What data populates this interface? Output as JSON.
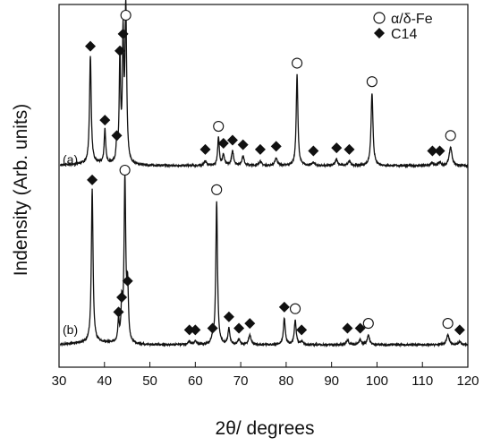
{
  "chart_data": {
    "type": "line",
    "xlabel": "2θ/ degrees",
    "ylabel": "Indensity (Arb. units)",
    "xlim": [
      30,
      120
    ],
    "x_ticks": [
      30,
      40,
      50,
      60,
      70,
      80,
      90,
      100,
      110,
      120
    ],
    "y_ticks_shown": false,
    "grid": false,
    "legend_position": "top-right",
    "legend": [
      {
        "marker": "open-circle",
        "label": "α/δ-Fe"
      },
      {
        "marker": "filled-diamond",
        "label": "C14"
      }
    ],
    "colors": {
      "line": "#111111",
      "axis": "#111111"
    },
    "series": [
      {
        "name": "(a)",
        "baseline": 0.0,
        "noise": 0.012,
        "peaks": [
          {
            "x": 36.9,
            "h": 0.7,
            "w": 0.22
          },
          {
            "x": 40.1,
            "h": 0.22,
            "w": 0.2
          },
          {
            "x": 42.7,
            "h": 0.12,
            "w": 0.18
          },
          {
            "x": 43.4,
            "h": 0.67,
            "w": 0.18
          },
          {
            "x": 44.1,
            "h": 0.78,
            "w": 0.18
          },
          {
            "x": 44.7,
            "h": 1.0,
            "w": 0.22
          },
          {
            "x": 62.2,
            "h": 0.03,
            "w": 0.3
          },
          {
            "x": 65.1,
            "h": 0.18,
            "w": 0.22
          },
          {
            "x": 66.2,
            "h": 0.07,
            "w": 0.25
          },
          {
            "x": 68.2,
            "h": 0.09,
            "w": 0.3
          },
          {
            "x": 70.5,
            "h": 0.06,
            "w": 0.3
          },
          {
            "x": 74.3,
            "h": 0.03,
            "w": 0.3
          },
          {
            "x": 77.8,
            "h": 0.05,
            "w": 0.3
          },
          {
            "x": 82.4,
            "h": 0.59,
            "w": 0.22
          },
          {
            "x": 86.0,
            "h": 0.02,
            "w": 0.3
          },
          {
            "x": 91.1,
            "h": 0.04,
            "w": 0.3
          },
          {
            "x": 93.9,
            "h": 0.03,
            "w": 0.3
          },
          {
            "x": 98.9,
            "h": 0.47,
            "w": 0.25
          },
          {
            "x": 112.2,
            "h": 0.02,
            "w": 0.3
          },
          {
            "x": 113.8,
            "h": 0.02,
            "w": 0.3
          },
          {
            "x": 116.2,
            "h": 0.12,
            "w": 0.35
          }
        ],
        "c14_markers": [
          36.9,
          40.1,
          42.7,
          43.4,
          44.1,
          62.2,
          66.2,
          68.2,
          70.5,
          74.3,
          77.8,
          86.0,
          91.1,
          93.9,
          112.2,
          113.8
        ],
        "fe_markers": [
          44.7,
          65.1,
          82.4,
          98.9,
          116.2
        ]
      },
      {
        "name": "(b)",
        "baseline": 0.0,
        "noise": 0.01,
        "peaks": [
          {
            "x": 37.3,
            "h": 0.94,
            "w": 0.22
          },
          {
            "x": 43.1,
            "h": 0.13,
            "w": 0.18
          },
          {
            "x": 43.8,
            "h": 0.22,
            "w": 0.18
          },
          {
            "x": 44.5,
            "h": 1.0,
            "w": 0.22
          },
          {
            "x": 45.1,
            "h": 0.32,
            "w": 0.2
          },
          {
            "x": 58.7,
            "h": 0.02,
            "w": 0.3
          },
          {
            "x": 60.0,
            "h": 0.02,
            "w": 0.3
          },
          {
            "x": 63.8,
            "h": 0.03,
            "w": 0.3
          },
          {
            "x": 64.7,
            "h": 0.88,
            "w": 0.22
          },
          {
            "x": 67.4,
            "h": 0.1,
            "w": 0.25
          },
          {
            "x": 69.6,
            "h": 0.03,
            "w": 0.3
          },
          {
            "x": 72.0,
            "h": 0.06,
            "w": 0.3
          },
          {
            "x": 79.6,
            "h": 0.16,
            "w": 0.25
          },
          {
            "x": 82.0,
            "h": 0.15,
            "w": 0.25
          },
          {
            "x": 83.4,
            "h": 0.02,
            "w": 0.3
          },
          {
            "x": 93.5,
            "h": 0.03,
            "w": 0.3
          },
          {
            "x": 96.3,
            "h": 0.03,
            "w": 0.3
          },
          {
            "x": 98.1,
            "h": 0.06,
            "w": 0.3
          },
          {
            "x": 115.6,
            "h": 0.06,
            "w": 0.35
          },
          {
            "x": 118.2,
            "h": 0.02,
            "w": 0.3
          }
        ],
        "c14_markers": [
          37.3,
          43.1,
          43.8,
          45.1,
          58.7,
          60.0,
          63.8,
          67.4,
          69.6,
          72.0,
          79.6,
          83.4,
          93.5,
          96.3,
          118.2
        ],
        "fe_markers": [
          44.5,
          64.7,
          82.0,
          98.1,
          115.6
        ]
      }
    ]
  }
}
